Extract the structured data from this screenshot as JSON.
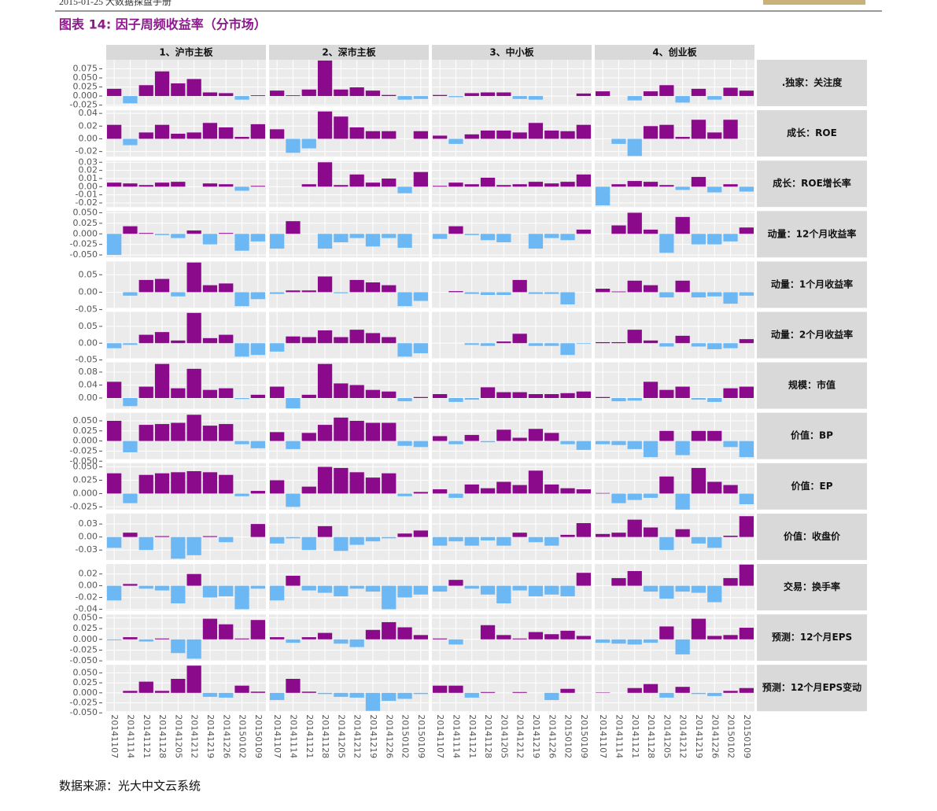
{
  "header": "2015-01-25 大数据探盘手册",
  "title": "图表 14: 因子周频收益率（分市场）",
  "source": "数据来源：光大中文云系统",
  "chart_data": {
    "type": "facet_bar",
    "pos_color": "#8b0a8b",
    "neg_color": "#6cb8f5",
    "grid": true,
    "columns": [
      "1、沪市主板",
      "2、深市主板",
      "3、中小板",
      "4、创业板"
    ],
    "categories": [
      "20141107",
      "20141114",
      "20141121",
      "20141128",
      "20141205",
      "20141212",
      "20141219",
      "20141226",
      "20150102",
      "20150109"
    ],
    "rows": [
      {
        "name": ".独家：关注度",
        "ylim": [
          -0.028,
          0.1
        ],
        "yticks": [
          -0.025,
          {
            "value": 0,
            "label": "0.000"
          },
          0.025,
          {
            "value": 0.05,
            "label": "0.050"
          },
          0.075
        ],
        "values": [
          [
            0.02,
            -0.02,
            0.03,
            0.068,
            0.035,
            0.047,
            0.01,
            0.008,
            -0.01,
            0.002
          ],
          [
            0.015,
            0.002,
            0.018,
            0.098,
            0.018,
            0.024,
            0.015,
            0.003,
            -0.01,
            -0.008
          ],
          [
            0.003,
            -0.003,
            0.008,
            0.01,
            0.01,
            -0.008,
            -0.01,
            0,
            0,
            0.007
          ],
          [
            0.013,
            0,
            -0.012,
            0.013,
            0.03,
            -0.018,
            0.02,
            -0.01,
            0.023,
            0.015
          ]
        ]
      },
      {
        "name": "成长：ROE",
        "ylim": [
          -0.028,
          0.045
        ],
        "yticks": [
          -0.02,
          {
            "value": 0,
            "label": "0.00"
          },
          0.02,
          0.04
        ],
        "values": [
          [
            0.022,
            -0.01,
            0.01,
            0.022,
            0.008,
            0.01,
            0.025,
            0.018,
            0.003,
            0.023
          ],
          [
            0.015,
            -0.022,
            -0.015,
            0.043,
            0.035,
            0.018,
            0.012,
            0.012,
            0,
            0.012
          ],
          [
            0.005,
            -0.008,
            0.007,
            0.013,
            0.013,
            0.01,
            0.025,
            0.013,
            0.012,
            0.022
          ],
          [
            0,
            -0.008,
            -0.027,
            0.02,
            0.022,
            0.003,
            0.03,
            0.01,
            0.03,
            0
          ]
        ]
      },
      {
        "name": "成长：ROE增长率",
        "ylim": [
          -0.025,
          0.032
        ],
        "yticks": [
          -0.02,
          -0.01,
          {
            "value": 0,
            "label": "0.00"
          },
          0.01,
          0.02,
          0.03
        ],
        "values": [
          [
            0.005,
            0.004,
            0.002,
            0.005,
            0.006,
            0,
            0.004,
            0.003,
            -0.005,
            0.001
          ],
          [
            0,
            0,
            0.003,
            0.03,
            0.002,
            0.015,
            0.005,
            0.01,
            -0.008,
            0.018
          ],
          [
            0.001,
            0.005,
            0.003,
            0.011,
            0.002,
            0.003,
            0.006,
            0.004,
            0.006,
            0.015
          ],
          [
            -0.023,
            0.003,
            0.007,
            0.006,
            0.002,
            -0.004,
            0.012,
            -0.007,
            0.003,
            -0.006
          ]
        ]
      },
      {
        "name": "动量：12个月收益率",
        "ylim": [
          -0.056,
          0.054
        ],
        "yticks": [
          {
            "value": -0.05,
            "label": "-0.050"
          },
          -0.025,
          {
            "value": 0,
            "label": "0.000"
          },
          0.025,
          {
            "value": 0.05,
            "label": "0.050"
          }
        ],
        "values": [
          [
            -0.05,
            0.018,
            0.002,
            -0.003,
            -0.01,
            0.008,
            -0.025,
            0.002,
            -0.04,
            -0.018
          ],
          [
            -0.035,
            0.03,
            0,
            -0.035,
            -0.02,
            -0.01,
            -0.03,
            -0.01,
            -0.033,
            0
          ],
          [
            -0.012,
            0.018,
            -0.003,
            -0.015,
            -0.02,
            0,
            -0.035,
            -0.01,
            -0.015,
            0.01
          ],
          [
            0,
            0.02,
            0.05,
            0.01,
            -0.045,
            0.04,
            -0.025,
            -0.025,
            -0.018,
            0.015
          ]
        ]
      },
      {
        "name": "动量：1个月收益率",
        "ylim": [
          -0.045,
          0.088
        ],
        "yticks": [
          -0.05,
          {
            "value": 0,
            "label": "0.00"
          },
          0.05
        ],
        "values": [
          [
            0,
            -0.01,
            0.035,
            0.038,
            -0.012,
            0.085,
            0.02,
            0.025,
            -0.04,
            -0.02
          ],
          [
            -0.005,
            0.005,
            0.005,
            0.045,
            -0.003,
            0.035,
            0.028,
            0.02,
            -0.04,
            -0.025
          ],
          [
            0,
            0.003,
            -0.005,
            -0.008,
            -0.008,
            0.035,
            -0.005,
            -0.005,
            -0.035,
            0
          ],
          [
            0.01,
            0.002,
            0.033,
            0.02,
            -0.015,
            0.033,
            -0.015,
            -0.012,
            -0.033,
            -0.01
          ]
        ]
      },
      {
        "name": "动量：2个月收益率",
        "ylim": [
          -0.045,
          0.093
        ],
        "yticks": [
          -0.05,
          {
            "value": 0,
            "label": "0.00"
          },
          0.05
        ],
        "values": [
          [
            -0.015,
            -0.005,
            0.025,
            0.033,
            0.008,
            0.09,
            0.015,
            0.025,
            -0.04,
            -0.035
          ],
          [
            -0.025,
            0.02,
            0.018,
            0.038,
            0.018,
            0.04,
            0.03,
            0.018,
            -0.04,
            -0.03
          ],
          [
            0,
            0,
            -0.005,
            -0.008,
            0.005,
            0.028,
            -0.008,
            -0.008,
            -0.035,
            -0.002
          ],
          [
            0.003,
            0.003,
            0.04,
            0.008,
            -0.01,
            0.022,
            -0.01,
            -0.018,
            -0.015,
            0.012
          ]
        ]
      },
      {
        "name": "规模：市值",
        "ylim": [
          -0.033,
          0.11
        ],
        "yticks": [
          {
            "value": 0,
            "label": "0.00"
          },
          0.04,
          0.08
        ],
        "values": [
          [
            0.05,
            -0.025,
            0.035,
            0.105,
            0.03,
            0.09,
            0.025,
            0.03,
            -0.003,
            0.01
          ],
          [
            0.035,
            -0.032,
            0.01,
            0.105,
            0.045,
            0.04,
            0.025,
            0.02,
            -0.01,
            0.003
          ],
          [
            0.012,
            -0.012,
            -0.005,
            0.033,
            0.018,
            0.018,
            0.012,
            0.012,
            0.015,
            0.02
          ],
          [
            0.003,
            -0.01,
            -0.008,
            0.05,
            0.025,
            0.035,
            -0.005,
            -0.012,
            0.03,
            0.035
          ]
        ]
      },
      {
        "name": "价值：BP",
        "ylim": [
          -0.045,
          0.07
        ],
        "yticks": [
          {
            "value": -0.05,
            "label": "-0.050"
          },
          -0.025,
          {
            "value": 0,
            "label": "0.000"
          },
          0.025,
          {
            "value": 0.05,
            "label": "0.050"
          }
        ],
        "values": [
          [
            0.05,
            -0.028,
            0.04,
            0.042,
            0.045,
            0.065,
            0.038,
            0.042,
            -0.008,
            -0.018
          ],
          [
            0.022,
            -0.02,
            0.02,
            0.04,
            0.058,
            0.05,
            0.045,
            0.045,
            -0.012,
            -0.015
          ],
          [
            0.012,
            -0.008,
            0.015,
            -0.003,
            0.028,
            0.008,
            0.03,
            0.02,
            -0.008,
            -0.022
          ],
          [
            -0.008,
            -0.01,
            -0.02,
            -0.04,
            0.025,
            -0.035,
            0.025,
            0.025,
            -0.015,
            -0.04
          ]
        ]
      },
      {
        "name": "价值：EP",
        "ylim": [
          -0.03,
          0.057
        ],
        "yticks": [
          -0.025,
          {
            "value": 0,
            "label": "0.000"
          },
          0.025,
          {
            "value": 0.05,
            "label": "0.050"
          }
        ],
        "values": [
          [
            0.038,
            -0.018,
            0.035,
            0.038,
            0.04,
            0.042,
            0.04,
            0.035,
            -0.005,
            0.005
          ],
          [
            0.025,
            -0.025,
            0.013,
            0.05,
            0.048,
            0.04,
            0.03,
            0.038,
            -0.005,
            0.003
          ],
          [
            0.008,
            -0.008,
            0.017,
            0.01,
            0.022,
            0.016,
            0.043,
            0.017,
            0.01,
            0.008
          ],
          [
            0.001,
            -0.018,
            -0.012,
            -0.008,
            0.032,
            -0.03,
            0.048,
            0.022,
            0.016,
            -0.02
          ]
        ]
      },
      {
        "name": "价值：收盘价",
        "ylim": [
          -0.053,
          0.054
        ],
        "yticks": [
          -0.03,
          {
            "value": 0,
            "label": "0.00"
          },
          0.03
        ],
        "values": [
          [
            -0.025,
            0.01,
            -0.03,
            0.002,
            -0.05,
            -0.042,
            0.002,
            -0.012,
            0,
            0.03
          ],
          [
            -0.015,
            -0.003,
            -0.03,
            0.025,
            -0.032,
            -0.018,
            -0.01,
            -0.003,
            0.008,
            0.015
          ],
          [
            -0.02,
            -0.01,
            -0.02,
            -0.008,
            -0.02,
            0.01,
            -0.012,
            -0.02,
            0.005,
            0.032
          ],
          [
            0.007,
            0.01,
            0.04,
            0.022,
            -0.03,
            0.018,
            -0.015,
            -0.025,
            0.003,
            0.048
          ]
        ]
      },
      {
        "name": "交易：换手率",
        "ylim": [
          -0.042,
          0.037
        ],
        "yticks": [
          -0.04,
          -0.02,
          {
            "value": 0,
            "label": "0.00"
          },
          0.02
        ],
        "values": [
          [
            -0.025,
            0.003,
            -0.005,
            -0.008,
            -0.03,
            0.02,
            -0.02,
            -0.018,
            -0.04,
            -0.005
          ],
          [
            -0.025,
            0.017,
            -0.008,
            -0.012,
            -0.018,
            -0.005,
            -0.01,
            -0.04,
            -0.02,
            -0.015
          ],
          [
            -0.01,
            0.01,
            -0.005,
            -0.015,
            -0.03,
            -0.008,
            -0.018,
            -0.015,
            -0.018,
            0.022
          ],
          [
            0,
            0.013,
            0.025,
            -0.01,
            -0.022,
            -0.01,
            -0.012,
            -0.028,
            0.013,
            0.036
          ]
        ]
      },
      {
        "name": "预测：12个月EPS",
        "ylim": [
          -0.05,
          0.058
        ],
        "yticks": [
          {
            "value": -0.05,
            "label": "-0.050"
          },
          -0.025,
          {
            "value": 0,
            "label": "0.000"
          },
          0.025,
          {
            "value": 0.05,
            "label": "0.050"
          }
        ],
        "values": [
          [
            -0.002,
            0.005,
            -0.005,
            0.002,
            -0.032,
            -0.045,
            0.048,
            0.035,
            0.002,
            0.045
          ],
          [
            0.005,
            -0.008,
            0.005,
            0.015,
            -0.01,
            -0.018,
            0.022,
            0.04,
            0.028,
            0.01
          ],
          [
            0.002,
            -0.012,
            0,
            0.033,
            0.01,
            0.002,
            0.017,
            0.012,
            0.02,
            0.008
          ],
          [
            -0.008,
            -0.01,
            -0.012,
            -0.008,
            0.03,
            -0.035,
            0.048,
            0.008,
            0.01,
            0.027
          ]
        ]
      },
      {
        "name": "预测：12个月EPS变动",
        "ylim": [
          -0.046,
          0.07
        ],
        "yticks": [
          {
            "value": -0.05,
            "label": "-0.050"
          },
          -0.025,
          {
            "value": 0,
            "label": "0.000"
          },
          0.025,
          {
            "value": 0.05,
            "label": "0.050"
          }
        ],
        "values": [
          [
            0,
            0.005,
            0.028,
            0.005,
            0.035,
            0.068,
            -0.01,
            -0.012,
            0.018,
            0.003
          ],
          [
            -0.018,
            0.035,
            0.003,
            -0.003,
            -0.01,
            -0.012,
            -0.045,
            -0.02,
            -0.015,
            -0.003
          ],
          [
            0.018,
            0.018,
            -0.012,
            0.002,
            0,
            0.002,
            0,
            -0.018,
            0.01,
            0
          ],
          [
            0.001,
            0,
            0.012,
            0.022,
            -0.012,
            0.015,
            -0.003,
            -0.008,
            0.005,
            0.012
          ]
        ]
      }
    ]
  }
}
